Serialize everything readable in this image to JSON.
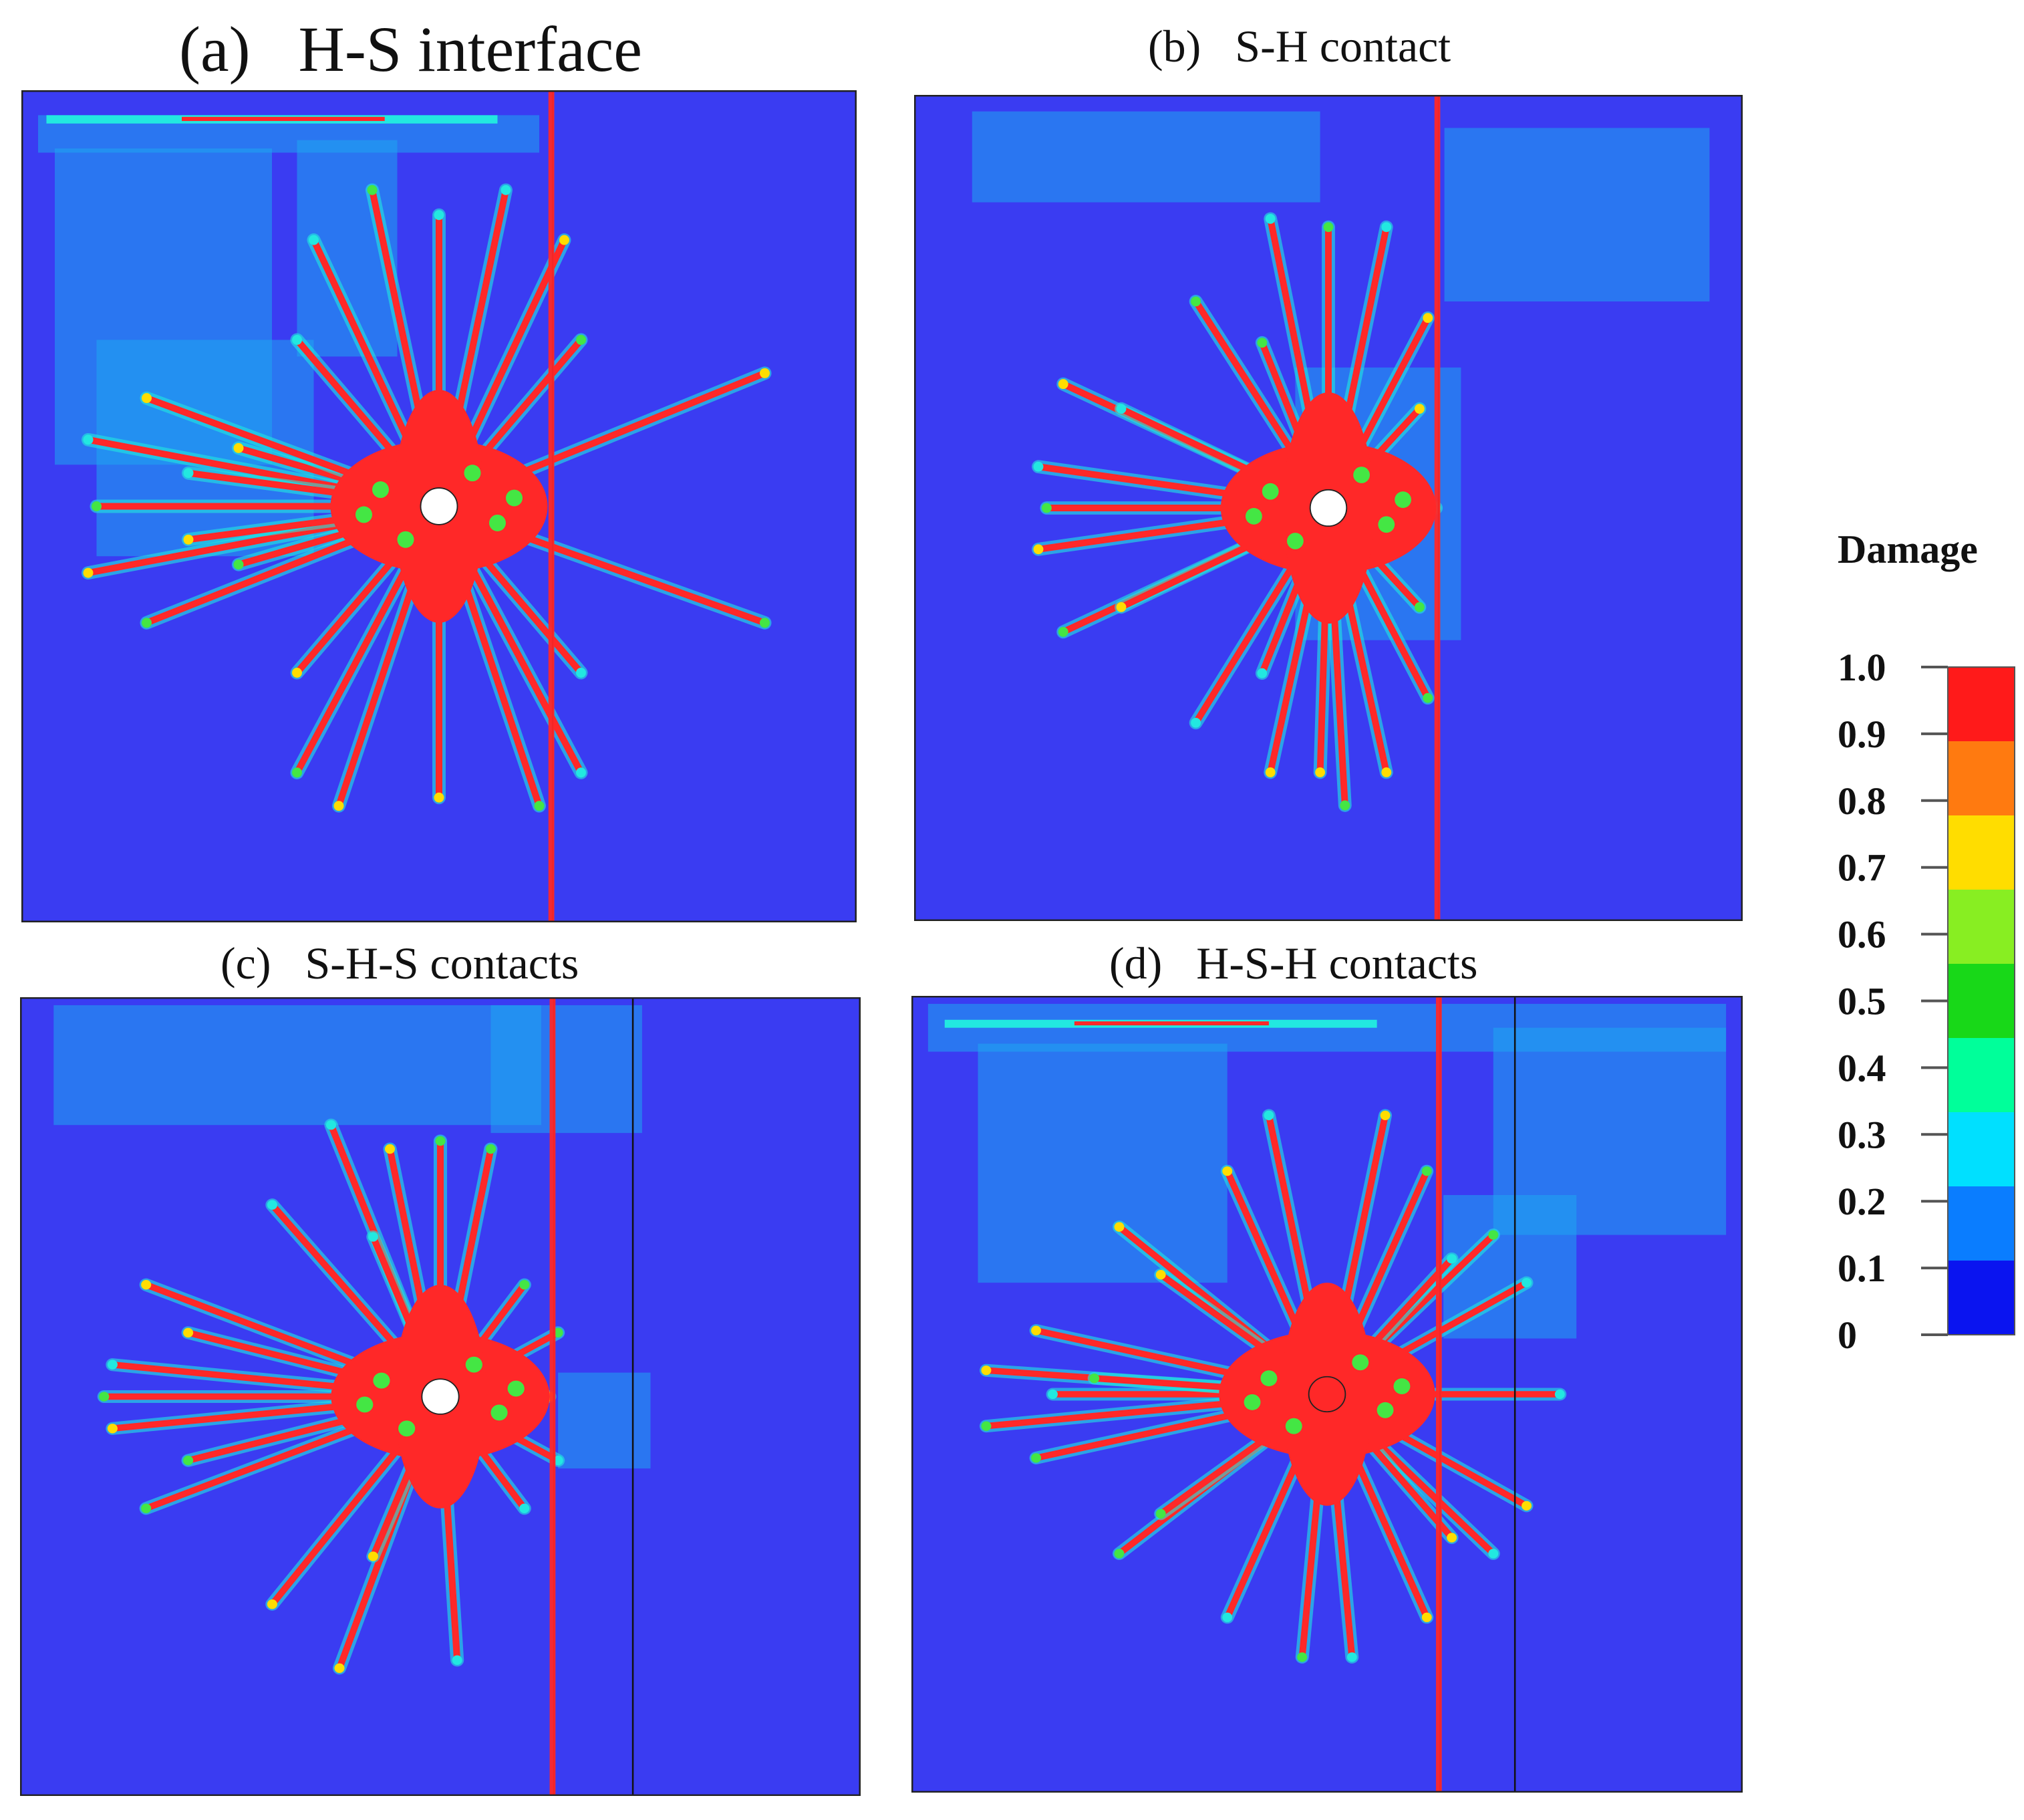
{
  "panels": [
    {
      "id": "a",
      "label": "(a)",
      "name": "H-S interface",
      "interfaces": [
        0.636
      ]
    },
    {
      "id": "b",
      "label": "(b)",
      "name": "S-H contact",
      "interfaces": [
        0.633
      ]
    },
    {
      "id": "c",
      "label": "(c)",
      "name": "S-H-S contacts",
      "interfaces": [
        0.635,
        0.729
      ]
    },
    {
      "id": "d",
      "label": "(d)",
      "name": "H-S-H contacts",
      "interfaces": [
        0.636,
        0.726
      ]
    }
  ],
  "legend": {
    "title": "Damage",
    "ticks": [
      "1.0",
      "0.9",
      "0.8",
      "0.7",
      "0.6",
      "0.5",
      "0.4",
      "0.3",
      "0.2",
      "0.1",
      "0"
    ],
    "colors": [
      "#ff1a1a",
      "#ff7a10",
      "#ffdd00",
      "#88ee22",
      "#18d818",
      "#00ff9a",
      "#00e0ff",
      "#0a7dff",
      "#0a14f0"
    ]
  },
  "colors": {
    "background": "#3a3cf2",
    "damaged": "#ff2828",
    "high": "#ffdd00",
    "mid": "#44e644",
    "low": "#22e8e0",
    "light": "#1ea5f0",
    "frame": "#222222"
  }
}
